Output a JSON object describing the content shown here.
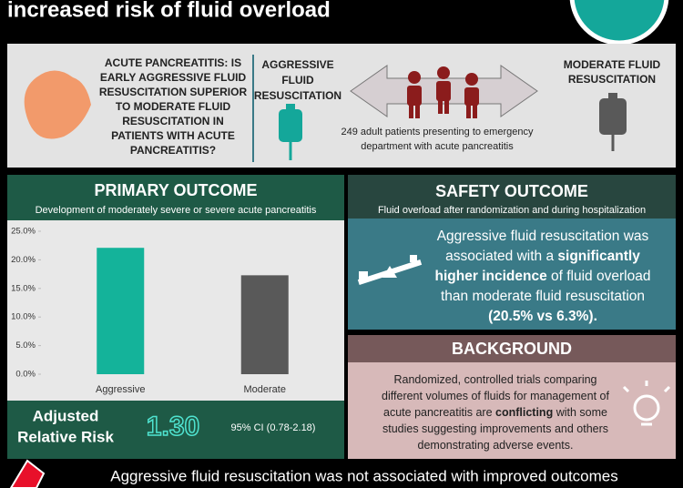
{
  "header": {
    "title": "increased risk of fluid overload"
  },
  "intro": {
    "question": [
      "ACUTE PANCREATITIS: IS",
      "EARLY AGGRESSIVE FLUID",
      "RESUSCITATION SUPERIOR",
      "TO MODERATE FLUID",
      "RESUSCITATION IN",
      "PATIENTS WITH ACUTE",
      "PANCREATITIS?"
    ],
    "aggressive": [
      "AGGRESSIVE",
      "FLUID",
      "RESUSCITATION"
    ],
    "population": [
      "249 adult patients presenting to emergency",
      "department with acute pancreatitis"
    ],
    "moderate": [
      "MODERATE FLUID",
      "RESUSCITATION"
    ]
  },
  "primary": {
    "title": "PRIMARY OUTCOME",
    "subtitle": "Development of moderately severe or severe acute pancreatitis",
    "risk_label": [
      "Adjusted",
      "Relative Risk"
    ],
    "risk_value": "1.30",
    "ci": "95% CI (0.78-2.18)"
  },
  "chart_data": {
    "type": "bar",
    "categories": [
      "Aggressive",
      "Moderate"
    ],
    "values": [
      22.1,
      17.3
    ],
    "colors": [
      "#14b39a",
      "#595959"
    ],
    "ylim": [
      0,
      25
    ],
    "yticks": [
      {
        "value": 0,
        "label": "0.0%"
      },
      {
        "value": 5,
        "label": "5.0%"
      },
      {
        "value": 10,
        "label": "10.0%"
      },
      {
        "value": 15,
        "label": "15.0%"
      },
      {
        "value": 20,
        "label": "20.0%"
      },
      {
        "value": 25,
        "label": "25.0%"
      }
    ],
    "grid": false
  },
  "safety": {
    "title": "SAFETY OUTCOME",
    "subtitle": "Fluid overload after randomization and during hospitalization",
    "lines": [
      [
        {
          "text": "Aggressive fluid resuscitation was",
          "bold": false
        }
      ],
      [
        {
          "text": "associated with a ",
          "bold": false
        },
        {
          "text": "significantly",
          "bold": true
        }
      ],
      [
        {
          "text": "higher incidence",
          "bold": true
        },
        {
          "text": " of fluid overload",
          "bold": false
        }
      ],
      [
        {
          "text": "than moderate fluid resuscitation",
          "bold": false
        }
      ],
      [
        {
          "text": "(20.5% vs 6.3%).",
          "bold": true
        }
      ]
    ]
  },
  "background": {
    "title": "BACKGROUND",
    "lines": [
      [
        {
          "text": "Randomized, controlled trials comparing",
          "bold": false
        }
      ],
      [
        {
          "text": "different volumes of fluids for management of",
          "bold": false
        }
      ],
      [
        {
          "text": "acute pancreatitis are ",
          "bold": false
        },
        {
          "text": "conflicting",
          "bold": true
        },
        {
          "text": " with some",
          "bold": false
        }
      ],
      [
        {
          "text": "studies suggesting improvements and others",
          "bold": false
        }
      ],
      [
        {
          "text": "demonstrating adverse events.",
          "bold": false
        }
      ]
    ]
  },
  "footer": {
    "text": "Aggressive fluid resuscitation was not associated with improved outcomes"
  }
}
